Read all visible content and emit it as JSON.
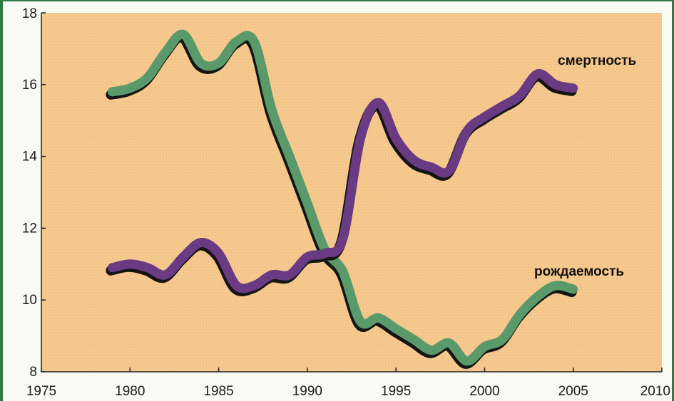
{
  "chart_data": {
    "type": "line",
    "title": "",
    "xlabel": "",
    "ylabel": "",
    "xlim": [
      1975,
      2010
    ],
    "ylim": [
      8,
      18
    ],
    "x_ticks": [
      "1975",
      "1980",
      "1985",
      "1990",
      "1995",
      "2000",
      "2005",
      "2010"
    ],
    "y_ticks": [
      "8",
      "10",
      "12",
      "14",
      "16",
      "18"
    ],
    "grid": false,
    "series": [
      {
        "name": "рождаемость",
        "color": "#5a9a6a",
        "x": [
          1979,
          1980,
          1981,
          1982,
          1983,
          1984,
          1985,
          1986,
          1987,
          1988,
          1989,
          1990,
          1991,
          1992,
          1993,
          1994,
          1995,
          1996,
          1997,
          1998,
          1999,
          2000,
          2001,
          2002,
          2003,
          2004,
          2005
        ],
        "y": [
          15.8,
          15.9,
          16.2,
          16.9,
          17.4,
          16.6,
          16.6,
          17.2,
          17.2,
          15.3,
          14.0,
          12.7,
          11.4,
          10.8,
          9.4,
          9.5,
          9.2,
          8.9,
          8.6,
          8.8,
          8.3,
          8.7,
          8.9,
          9.6,
          10.1,
          10.4,
          10.3
        ]
      },
      {
        "name": "смертность",
        "color": "#6a3a82",
        "x": [
          1979,
          1980,
          1981,
          1982,
          1983,
          1984,
          1985,
          1986,
          1987,
          1988,
          1989,
          1990,
          1991,
          1992,
          1993,
          1994,
          1995,
          1996,
          1997,
          1998,
          1999,
          2000,
          2001,
          2002,
          2003,
          2004,
          2005
        ],
        "y": [
          10.9,
          11.0,
          10.9,
          10.7,
          11.2,
          11.6,
          11.3,
          10.4,
          10.4,
          10.7,
          10.7,
          11.2,
          11.3,
          11.7,
          14.5,
          15.5,
          14.5,
          13.9,
          13.7,
          13.6,
          14.7,
          15.1,
          15.4,
          15.7,
          16.3,
          16.0,
          15.9
        ]
      }
    ]
  }
}
